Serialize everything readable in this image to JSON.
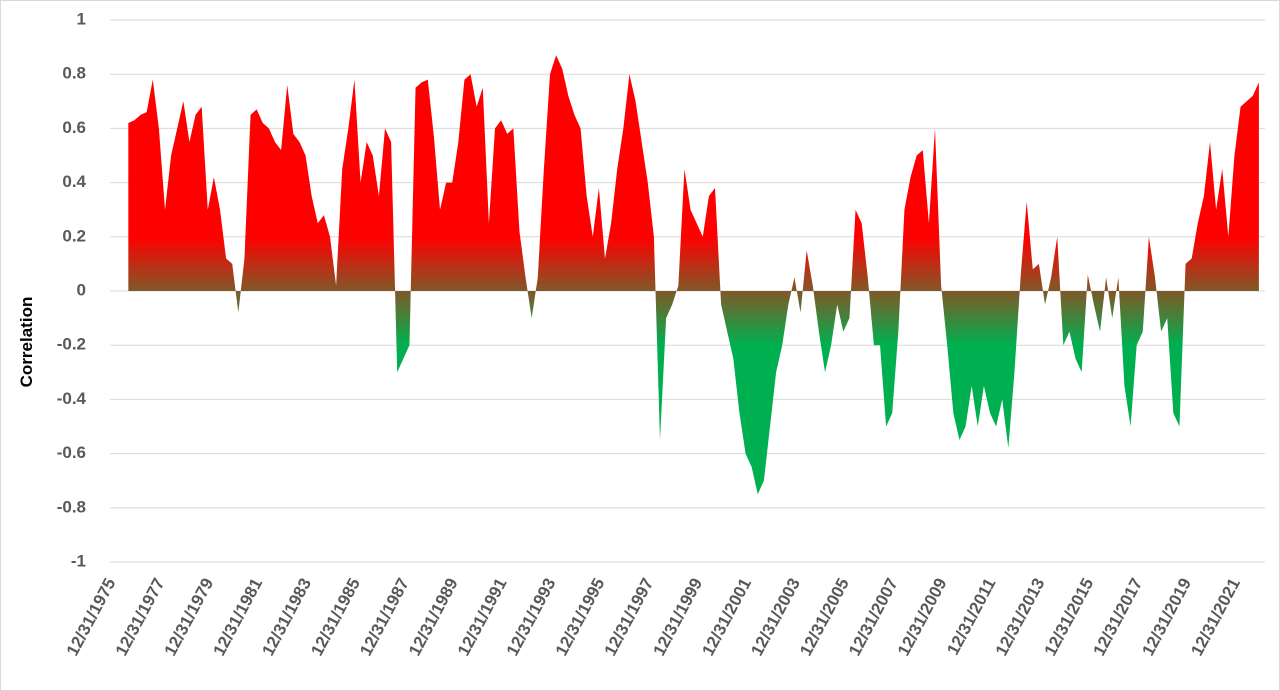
{
  "chart_data": {
    "type": "area",
    "y_label": "Correlation",
    "ylim": [
      -1,
      1
    ],
    "yticks": [
      -1,
      -0.8,
      -0.6,
      -0.4,
      -0.2,
      0,
      0.2,
      0.4,
      0.6,
      0.8,
      1
    ],
    "grid": true,
    "colors": {
      "positive": "#ff0000",
      "negative": "#00b050"
    },
    "categories": [
      "12/31/1975",
      null,
      null,
      null,
      null,
      null,
      null,
      null,
      "12/31/1977",
      null,
      null,
      null,
      null,
      null,
      null,
      null,
      "12/31/1979",
      null,
      null,
      null,
      null,
      null,
      null,
      null,
      "12/31/1981",
      null,
      null,
      null,
      null,
      null,
      null,
      null,
      "12/31/1983",
      null,
      null,
      null,
      null,
      null,
      null,
      null,
      "12/31/1985",
      null,
      null,
      null,
      null,
      null,
      null,
      null,
      "12/31/1987",
      null,
      null,
      null,
      null,
      null,
      null,
      null,
      "12/31/1989",
      null,
      null,
      null,
      null,
      null,
      null,
      null,
      "12/31/1991",
      null,
      null,
      null,
      null,
      null,
      null,
      null,
      "12/31/1993",
      null,
      null,
      null,
      null,
      null,
      null,
      null,
      "12/31/1995",
      null,
      null,
      null,
      null,
      null,
      null,
      null,
      "12/31/1997",
      null,
      null,
      null,
      null,
      null,
      null,
      null,
      "12/31/1999",
      null,
      null,
      null,
      null,
      null,
      null,
      null,
      "12/31/2001",
      null,
      null,
      null,
      null,
      null,
      null,
      null,
      "12/31/2003",
      null,
      null,
      null,
      null,
      null,
      null,
      null,
      "12/31/2005",
      null,
      null,
      null,
      null,
      null,
      null,
      null,
      "12/31/2007",
      null,
      null,
      null,
      null,
      null,
      null,
      null,
      "12/31/2009",
      null,
      null,
      null,
      null,
      null,
      null,
      null,
      "12/31/2011",
      null,
      null,
      null,
      null,
      null,
      null,
      null,
      "12/31/2013",
      null,
      null,
      null,
      null,
      null,
      null,
      null,
      "12/31/2015",
      null,
      null,
      null,
      null,
      null,
      null,
      null,
      "12/31/2017",
      null,
      null,
      null,
      null,
      null,
      null,
      null,
      "12/31/2019",
      null,
      null,
      null,
      null,
      null,
      null,
      null,
      "12/31/2021",
      null,
      null,
      null,
      null
    ],
    "values": [
      null,
      null,
      null,
      0.62,
      0.63,
      0.65,
      0.66,
      0.78,
      0.6,
      0.3,
      0.5,
      0.6,
      0.7,
      0.55,
      0.65,
      0.68,
      0.3,
      0.42,
      0.3,
      0.12,
      0.1,
      -0.08,
      0.12,
      0.65,
      0.67,
      0.62,
      0.6,
      0.55,
      0.52,
      0.76,
      0.58,
      0.55,
      0.5,
      0.35,
      0.25,
      0.28,
      0.2,
      0.02,
      0.45,
      0.6,
      0.78,
      0.4,
      0.55,
      0.5,
      0.35,
      0.6,
      0.55,
      -0.3,
      -0.25,
      -0.2,
      0.75,
      0.77,
      0.78,
      0.57,
      0.3,
      0.4,
      0.4,
      0.55,
      0.78,
      0.8,
      0.68,
      0.75,
      0.25,
      0.6,
      0.63,
      0.58,
      0.6,
      0.22,
      0.05,
      -0.1,
      0.05,
      0.45,
      0.8,
      0.87,
      0.82,
      0.72,
      0.65,
      0.6,
      0.35,
      0.2,
      0.38,
      0.12,
      0.25,
      0.45,
      0.6,
      0.8,
      0.7,
      0.55,
      0.4,
      0.2,
      -0.55,
      -0.1,
      -0.05,
      0.02,
      0.45,
      0.3,
      0.25,
      0.2,
      0.35,
      0.38,
      -0.05,
      -0.15,
      -0.25,
      -0.45,
      -0.6,
      -0.65,
      -0.75,
      -0.7,
      -0.5,
      -0.3,
      -0.2,
      -0.05,
      0.05,
      -0.08,
      0.15,
      0.02,
      -0.15,
      -0.3,
      -0.2,
      -0.05,
      -0.15,
      -0.1,
      0.3,
      0.25,
      0.05,
      -0.2,
      -0.2,
      -0.5,
      -0.45,
      -0.15,
      0.3,
      0.42,
      0.5,
      0.52,
      0.25,
      0.6,
      0.02,
      -0.2,
      -0.45,
      -0.55,
      -0.5,
      -0.35,
      -0.5,
      -0.35,
      -0.45,
      -0.5,
      -0.4,
      -0.58,
      -0.3,
      0.05,
      0.33,
      0.08,
      0.1,
      -0.05,
      0.05,
      0.2,
      -0.2,
      -0.15,
      -0.25,
      -0.3,
      0.06,
      -0.05,
      -0.15,
      0.05,
      -0.1,
      0.05,
      -0.35,
      -0.5,
      -0.2,
      -0.15,
      0.2,
      0.05,
      -0.15,
      -0.1,
      -0.45,
      -0.5,
      0.1,
      0.12,
      0.25,
      0.35,
      0.55,
      0.3,
      0.45,
      0.2,
      0.5,
      0.68,
      0.7,
      0.72,
      0.77
    ]
  }
}
